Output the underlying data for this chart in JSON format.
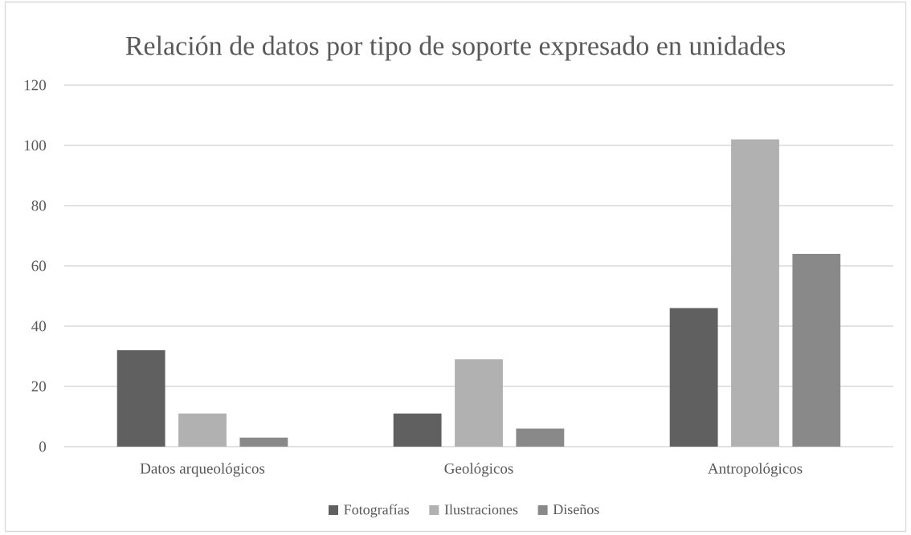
{
  "chart_data": {
    "type": "bar",
    "title": "Relación de datos por tipo de soporte expresado en unidades",
    "categories": [
      "Datos arqueológicos",
      "Geológicos",
      "Antropológicos"
    ],
    "series": [
      {
        "name": "Fotografías",
        "color": "#606060",
        "values": [
          32,
          11,
          46
        ]
      },
      {
        "name": "Ilustraciones",
        "color": "#b1b1b1",
        "values": [
          11,
          29,
          102
        ]
      },
      {
        "name": "Diseños",
        "color": "#898989",
        "values": [
          3,
          6,
          64
        ]
      }
    ],
    "ylim": [
      0,
      120
    ],
    "yticks": [
      0,
      20,
      40,
      60,
      80,
      100,
      120
    ],
    "grid": "y",
    "legend": "bottom"
  }
}
